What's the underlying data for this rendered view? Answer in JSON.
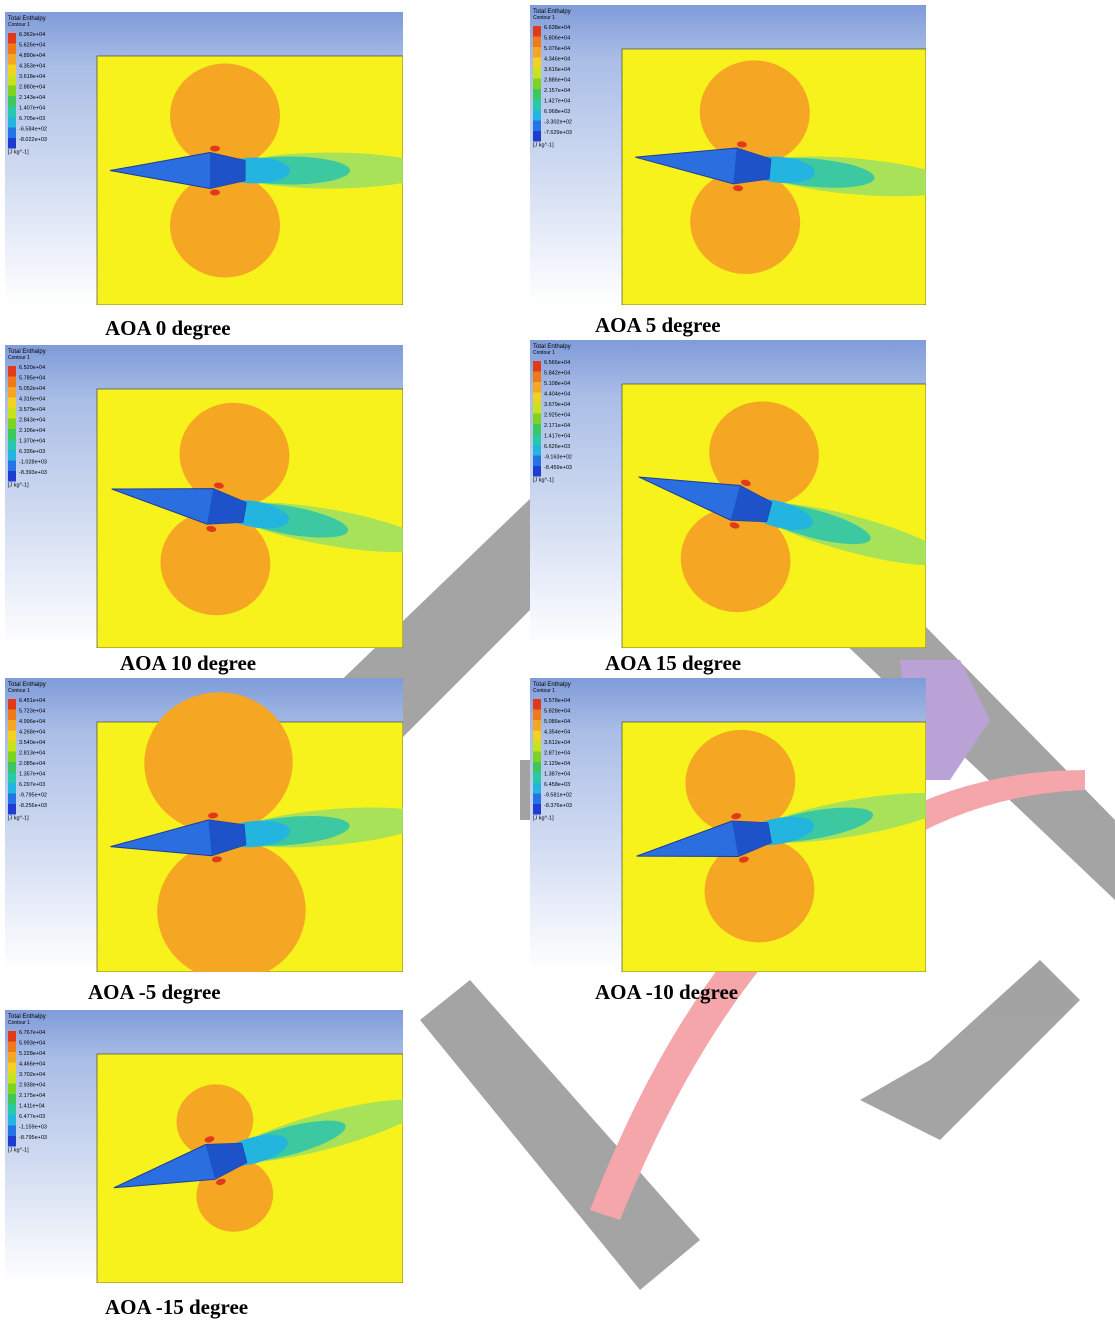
{
  "figures": [
    {
      "caption": "AOA 0 degree",
      "legend": {
        "title": "Total Enthalpy",
        "subtitle": "Contour 1",
        "unit": "[J kg^-1]",
        "levels": [
          "6.362e+04",
          "5.626e+04",
          "4.890e+04",
          "4.353e+04",
          "3.618e+04",
          "2.880e+04",
          "2.143e+04",
          "1.407e+04",
          "6.705e+03",
          "-6.584e+02",
          "-8.022e+03"
        ]
      }
    },
    {
      "caption": "AOA 5 degree",
      "legend": {
        "title": "Total Enthalpy",
        "subtitle": "Contour 1",
        "unit": "[J kg^-1]",
        "levels": [
          "6.638e+04",
          "5.806e+04",
          "5.076e+04",
          "4.346e+04",
          "3.616e+04",
          "2.886e+04",
          "2.157e+04",
          "1.427e+04",
          "6.968e+03",
          "-3.302e+02",
          "-7.629e+03"
        ]
      }
    },
    {
      "caption": "AOA 10 degree",
      "legend": {
        "title": "Total Enthalpy",
        "subtitle": "Contour 1",
        "unit": "[J kg^-1]",
        "levels": [
          "6.520e+04",
          "5.785e+04",
          "5.052e+04",
          "4.316e+04",
          "3.579e+04",
          "2.843e+04",
          "2.106e+04",
          "1.370e+04",
          "6.336e+03",
          "-1.028e+03",
          "-8.393e+03"
        ]
      }
    },
    {
      "caption": "AOA 15 degree",
      "legend": {
        "title": "Total Enthalpy",
        "subtitle": "Contour 1",
        "unit": "[J kg^-1]",
        "levels": [
          "6.566e+04",
          "5.842e+04",
          "5.108e+04",
          "4.404e+04",
          "3.679e+04",
          "2.925e+04",
          "2.171e+04",
          "1.417e+04",
          "6.626e+03",
          "-9.163e+02",
          "-8.459e+03"
        ]
      }
    },
    {
      "caption": "AOA -5 degree",
      "legend": {
        "title": "Total Enthalpy",
        "subtitle": "Contour 1",
        "unit": "[J kg^-1]",
        "levels": [
          "6.451e+04",
          "5.723e+04",
          "4.996e+04",
          "4.268e+04",
          "3.540e+04",
          "2.813e+04",
          "2.085e+04",
          "1.357e+04",
          "6.297e+03",
          "-9.795e+02",
          "-8.256e+03"
        ]
      }
    },
    {
      "caption": "AOA -10 degree",
      "legend": {
        "title": "Total Enthalpy",
        "subtitle": "Contour 1",
        "unit": "[J kg^-1]",
        "levels": [
          "6.578e+04",
          "5.828e+04",
          "5.086e+04",
          "4.354e+04",
          "3.612e+04",
          "2.871e+04",
          "2.129e+04",
          "1.387e+04",
          "6.458e+03",
          "-9.581e+02",
          "-8.376e+03"
        ]
      }
    },
    {
      "caption": "AOA -15 degree",
      "legend": {
        "title": "Total Enthalpy",
        "subtitle": "Contour 1",
        "unit": "[J kg^-1]",
        "levels": [
          "6.767e+04",
          "5.993e+04",
          "5.228e+04",
          "4.466e+04",
          "3.702e+04",
          "2.938e+04",
          "2.175e+04",
          "1.411e+04",
          "6.477e+03",
          "-1.159e+03",
          "-8.795e+03"
        ]
      }
    }
  ]
}
